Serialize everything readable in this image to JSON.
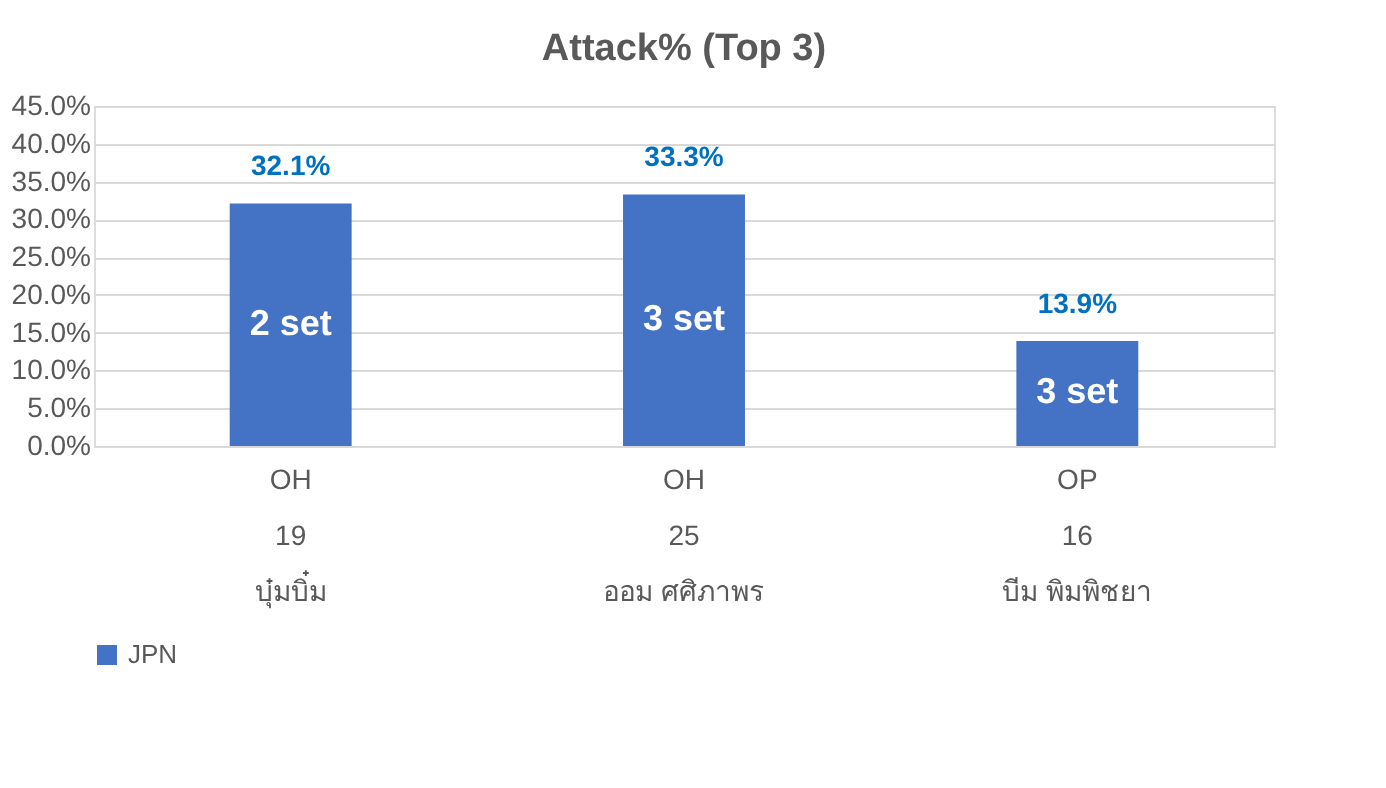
{
  "chart_data": {
    "type": "bar",
    "title": "Attack% (Top 3)",
    "categories": [
      "OH\n19\nบุ๋มบิ๋ม",
      "OH\n25\nออม ศศิภาพร",
      "OP\n16\nบีม พิมพิชยา"
    ],
    "series": [
      {
        "name": "JPN",
        "color": "#4472c4",
        "values": [
          32.1,
          33.3,
          13.9
        ],
        "value_labels": [
          "32.1%",
          "33.3%",
          "13.9%"
        ]
      }
    ],
    "ylim": [
      0,
      45
    ],
    "yticks": [
      {
        "value": 0,
        "label": "0.0%"
      },
      {
        "value": 5,
        "label": "5.0%"
      },
      {
        "value": 10,
        "label": "10.0%"
      },
      {
        "value": 15,
        "label": "15.0%"
      },
      {
        "value": 20,
        "label": "20.0%"
      },
      {
        "value": 25,
        "label": "25.0%"
      },
      {
        "value": 30,
        "label": "30.0%"
      },
      {
        "value": 35,
        "label": "35.0%"
      },
      {
        "value": 40,
        "label": "40.0%"
      },
      {
        "value": 45,
        "label": "45.0%"
      }
    ],
    "annotations": [
      "2 set",
      "3 set",
      "3 set"
    ],
    "grid": "y",
    "legend": "bottom"
  }
}
